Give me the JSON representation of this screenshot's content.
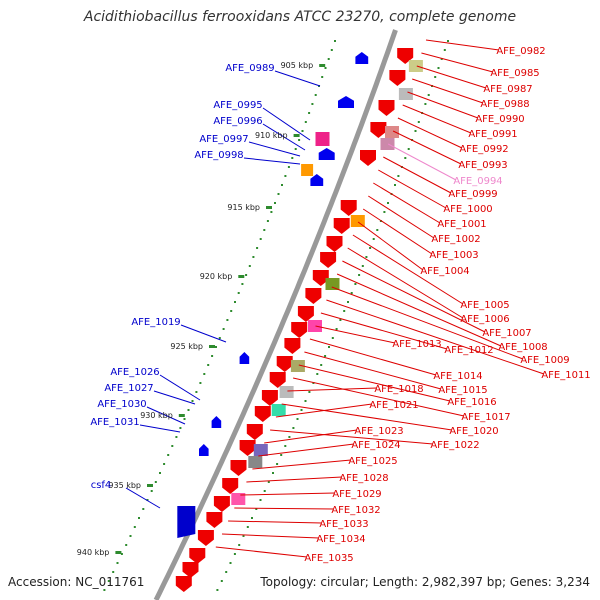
{
  "title": "Acidithiobacillus ferrooxidans ATCC 23270, complete genome",
  "accession": "Accession: NC_011761",
  "topology": "Topology: circular; Length: 2,982,397 bp; Genes: 3,234",
  "colors": {
    "backbone": "#888888",
    "tick": "#2e8b2e",
    "forward_gene": "#0000ee",
    "reverse_gene": "#ee0000",
    "label_forward": "#0000cc",
    "label_reverse": "#dd0000",
    "label_highlight": "#ee88cc"
  },
  "kbp_labels": [
    "905 kbp",
    "910 kbp",
    "915 kbp",
    "920 kbp",
    "925 kbp",
    "930 kbp",
    "935 kbp",
    "940 kbp"
  ],
  "left_gene_labels": [
    "AFE_0989",
    "AFE_0995",
    "AFE_0996",
    "AFE_0997",
    "AFE_0998",
    "AFE_1019",
    "AFE_1026",
    "AFE_1027",
    "AFE_1030",
    "AFE_1031",
    "csf4"
  ],
  "right_gene_labels": [
    "AFE_0982",
    "AFE_0985",
    "AFE_0987",
    "AFE_0988",
    "AFE_0990",
    "AFE_0991",
    "AFE_0992",
    "AFE_0993",
    "AFE_0994",
    "AFE_0999",
    "AFE_1000",
    "AFE_1001",
    "AFE_1002",
    "AFE_1003",
    "AFE_1004",
    "AFE_1005",
    "AFE_1006",
    "AFE_1007",
    "AFE_1008",
    "AFE_1009",
    "AFE_1011",
    "AFE_1012",
    "AFE_1013",
    "AFE_1014",
    "AFE_1015",
    "AFE_1016",
    "AFE_1017",
    "AFE_1018",
    "AFE_1020",
    "AFE_1021",
    "AFE_1022",
    "AFE_1023",
    "AFE_1024",
    "AFE_1025",
    "AFE_1028",
    "AFE_1029",
    "AFE_1032",
    "AFE_1033",
    "AFE_1034",
    "AFE_1035"
  ]
}
